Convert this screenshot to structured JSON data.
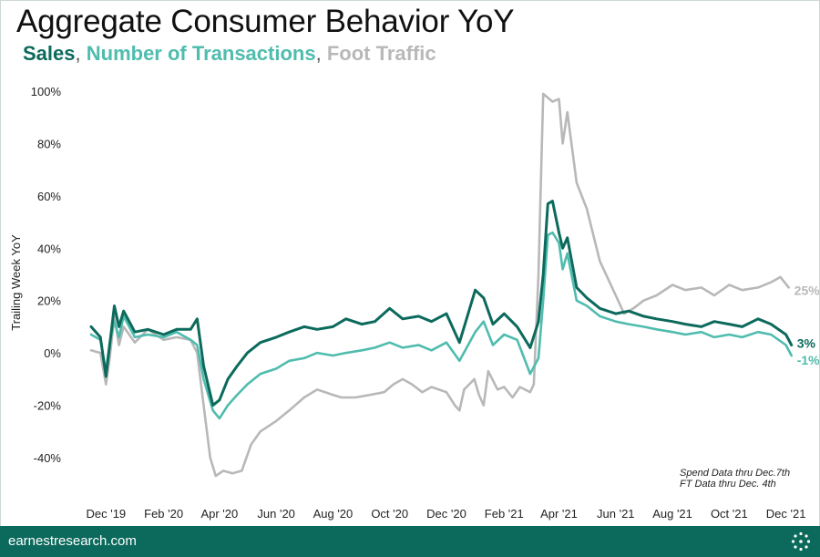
{
  "title": "Aggregate Consumer Behavior YoY",
  "subtitle": {
    "sales": "Sales",
    "sep1": ",",
    "transactions": "Number of Transactions",
    "sep2": ",",
    "foot_traffic": "Foot Traffic"
  },
  "notes": [
    "Spend Data thru Dec.7th",
    "FT Data thru Dec. 4th"
  ],
  "footer": {
    "url": "earnestresearch.com"
  },
  "colors": {
    "sales": "#0c6a5c",
    "transactions": "#4fbcae",
    "foot_traffic": "#b8b8b8",
    "footer_bg": "#0c6a5c"
  },
  "chart_data": {
    "type": "line",
    "ylabel": "Trailing Week YoY",
    "ylim": [
      -48,
      100
    ],
    "yticks": [
      -40,
      -20,
      0,
      20,
      40,
      60,
      80,
      100
    ],
    "ytick_labels": [
      "-40%",
      "-20%",
      "0%",
      "20%",
      "40%",
      "60%",
      "80%",
      "100%"
    ],
    "xlim": [
      "2019-11-15",
      "2021-12-20"
    ],
    "xticks": [
      "2019-12-01",
      "2020-02-01",
      "2020-04-01",
      "2020-06-01",
      "2020-08-01",
      "2020-10-01",
      "2020-12-01",
      "2021-02-01",
      "2021-04-01",
      "2021-06-01",
      "2021-08-01",
      "2021-10-01",
      "2021-12-01"
    ],
    "xtick_labels": [
      "Dec '19",
      "Feb '20",
      "Apr '20",
      "Jun '20",
      "Aug '20",
      "Oct '20",
      "Dec '20",
      "Feb '21",
      "Apr '21",
      "Jun '21",
      "Aug '21",
      "Oct '21",
      "Dec '21"
    ],
    "grid": false,
    "series": [
      {
        "name": "Foot Traffic",
        "color": "#b8b8b8",
        "end_label": "25%",
        "points": [
          [
            "2019-11-15",
            1
          ],
          [
            "2019-11-25",
            0
          ],
          [
            "2019-12-01",
            -12
          ],
          [
            "2019-12-05",
            -2
          ],
          [
            "2019-12-10",
            14
          ],
          [
            "2019-12-15",
            3
          ],
          [
            "2019-12-20",
            10
          ],
          [
            "2020-01-01",
            4
          ],
          [
            "2020-01-15",
            9
          ],
          [
            "2020-02-01",
            5
          ],
          [
            "2020-02-15",
            6
          ],
          [
            "2020-03-01",
            5
          ],
          [
            "2020-03-08",
            0
          ],
          [
            "2020-03-15",
            -20
          ],
          [
            "2020-03-22",
            -40
          ],
          [
            "2020-03-28",
            -47
          ],
          [
            "2020-04-05",
            -45
          ],
          [
            "2020-04-15",
            -46
          ],
          [
            "2020-04-25",
            -45
          ],
          [
            "2020-05-05",
            -35
          ],
          [
            "2020-05-15",
            -30
          ],
          [
            "2020-06-01",
            -26
          ],
          [
            "2020-06-15",
            -22
          ],
          [
            "2020-07-01",
            -17
          ],
          [
            "2020-07-15",
            -14
          ],
          [
            "2020-08-01",
            -16
          ],
          [
            "2020-08-10",
            -17
          ],
          [
            "2020-08-25",
            -17
          ],
          [
            "2020-09-10",
            -16
          ],
          [
            "2020-09-25",
            -15
          ],
          [
            "2020-10-05",
            -12
          ],
          [
            "2020-10-15",
            -10
          ],
          [
            "2020-10-25",
            -12
          ],
          [
            "2020-11-05",
            -15
          ],
          [
            "2020-11-15",
            -13
          ],
          [
            "2020-12-01",
            -15
          ],
          [
            "2020-12-10",
            -20
          ],
          [
            "2020-12-15",
            -22
          ],
          [
            "2020-12-20",
            -14
          ],
          [
            "2020-12-31",
            -10
          ],
          [
            "2021-01-05",
            -16
          ],
          [
            "2021-01-10",
            -20
          ],
          [
            "2021-01-15",
            -7
          ],
          [
            "2021-01-25",
            -14
          ],
          [
            "2021-02-01",
            -13
          ],
          [
            "2021-02-10",
            -17
          ],
          [
            "2021-02-18",
            -13
          ],
          [
            "2021-03-01",
            -15
          ],
          [
            "2021-03-05",
            -12
          ],
          [
            "2021-03-10",
            30
          ],
          [
            "2021-03-15",
            99
          ],
          [
            "2021-03-25",
            96
          ],
          [
            "2021-04-01",
            97
          ],
          [
            "2021-04-05",
            80
          ],
          [
            "2021-04-10",
            92
          ],
          [
            "2021-04-20",
            65
          ],
          [
            "2021-05-01",
            55
          ],
          [
            "2021-05-15",
            35
          ],
          [
            "2021-06-01",
            22
          ],
          [
            "2021-06-10",
            15
          ],
          [
            "2021-06-20",
            17
          ],
          [
            "2021-07-01",
            20
          ],
          [
            "2021-07-15",
            22
          ],
          [
            "2021-08-01",
            26
          ],
          [
            "2021-08-15",
            24
          ],
          [
            "2021-09-01",
            25
          ],
          [
            "2021-09-15",
            22
          ],
          [
            "2021-10-01",
            26
          ],
          [
            "2021-10-15",
            24
          ],
          [
            "2021-11-01",
            25
          ],
          [
            "2021-11-15",
            27
          ],
          [
            "2021-11-25",
            29
          ],
          [
            "2021-12-04",
            25
          ]
        ]
      },
      {
        "name": "Number of Transactions",
        "color": "#4fbcae",
        "end_label": "-1%",
        "points": [
          [
            "2019-11-15",
            7
          ],
          [
            "2019-11-25",
            5
          ],
          [
            "2019-12-01",
            -7
          ],
          [
            "2019-12-05",
            4
          ],
          [
            "2019-12-10",
            12
          ],
          [
            "2019-12-15",
            6
          ],
          [
            "2019-12-20",
            14
          ],
          [
            "2020-01-01",
            6
          ],
          [
            "2020-01-15",
            7
          ],
          [
            "2020-02-01",
            6
          ],
          [
            "2020-02-15",
            8
          ],
          [
            "2020-03-01",
            5
          ],
          [
            "2020-03-08",
            3
          ],
          [
            "2020-03-15",
            -10
          ],
          [
            "2020-03-25",
            -22
          ],
          [
            "2020-04-01",
            -25
          ],
          [
            "2020-04-10",
            -20
          ],
          [
            "2020-04-20",
            -16
          ],
          [
            "2020-05-01",
            -12
          ],
          [
            "2020-05-15",
            -8
          ],
          [
            "2020-06-01",
            -6
          ],
          [
            "2020-06-15",
            -3
          ],
          [
            "2020-07-01",
            -2
          ],
          [
            "2020-07-15",
            0
          ],
          [
            "2020-08-01",
            -1
          ],
          [
            "2020-08-15",
            0
          ],
          [
            "2020-09-01",
            1
          ],
          [
            "2020-09-15",
            2
          ],
          [
            "2020-10-01",
            4
          ],
          [
            "2020-10-15",
            2
          ],
          [
            "2020-11-01",
            3
          ],
          [
            "2020-11-15",
            1
          ],
          [
            "2020-12-01",
            4
          ],
          [
            "2020-12-15",
            -3
          ],
          [
            "2021-01-01",
            8
          ],
          [
            "2021-01-10",
            12
          ],
          [
            "2021-01-20",
            3
          ],
          [
            "2021-02-01",
            7
          ],
          [
            "2021-02-15",
            5
          ],
          [
            "2021-03-01",
            -8
          ],
          [
            "2021-03-10",
            -2
          ],
          [
            "2021-03-15",
            20
          ],
          [
            "2021-03-20",
            45
          ],
          [
            "2021-03-25",
            46
          ],
          [
            "2021-04-01",
            42
          ],
          [
            "2021-04-05",
            32
          ],
          [
            "2021-04-10",
            38
          ],
          [
            "2021-04-20",
            20
          ],
          [
            "2021-05-01",
            18
          ],
          [
            "2021-05-15",
            14
          ],
          [
            "2021-06-01",
            12
          ],
          [
            "2021-06-15",
            11
          ],
          [
            "2021-07-01",
            10
          ],
          [
            "2021-07-15",
            9
          ],
          [
            "2021-08-01",
            8
          ],
          [
            "2021-08-15",
            7
          ],
          [
            "2021-09-01",
            8
          ],
          [
            "2021-09-15",
            6
          ],
          [
            "2021-10-01",
            7
          ],
          [
            "2021-10-15",
            6
          ],
          [
            "2021-11-01",
            8
          ],
          [
            "2021-11-15",
            7
          ],
          [
            "2021-12-01",
            3
          ],
          [
            "2021-12-07",
            -1
          ]
        ]
      },
      {
        "name": "Sales",
        "color": "#0c6a5c",
        "end_label": "3%",
        "points": [
          [
            "2019-11-15",
            10
          ],
          [
            "2019-11-25",
            6
          ],
          [
            "2019-12-01",
            -9
          ],
          [
            "2019-12-05",
            3
          ],
          [
            "2019-12-10",
            18
          ],
          [
            "2019-12-15",
            10
          ],
          [
            "2019-12-20",
            16
          ],
          [
            "2020-01-01",
            8
          ],
          [
            "2020-01-15",
            9
          ],
          [
            "2020-02-01",
            7
          ],
          [
            "2020-02-15",
            9
          ],
          [
            "2020-03-01",
            9
          ],
          [
            "2020-03-08",
            13
          ],
          [
            "2020-03-15",
            -5
          ],
          [
            "2020-03-25",
            -20
          ],
          [
            "2020-04-01",
            -18
          ],
          [
            "2020-04-10",
            -10
          ],
          [
            "2020-04-20",
            -5
          ],
          [
            "2020-05-01",
            0
          ],
          [
            "2020-05-15",
            4
          ],
          [
            "2020-06-01",
            6
          ],
          [
            "2020-06-15",
            8
          ],
          [
            "2020-07-01",
            10
          ],
          [
            "2020-07-15",
            9
          ],
          [
            "2020-08-01",
            10
          ],
          [
            "2020-08-15",
            13
          ],
          [
            "2020-09-01",
            11
          ],
          [
            "2020-09-15",
            12
          ],
          [
            "2020-10-01",
            17
          ],
          [
            "2020-10-15",
            13
          ],
          [
            "2020-11-01",
            14
          ],
          [
            "2020-11-15",
            12
          ],
          [
            "2020-12-01",
            15
          ],
          [
            "2020-12-15",
            4
          ],
          [
            "2021-01-01",
            24
          ],
          [
            "2021-01-10",
            21
          ],
          [
            "2021-01-20",
            11
          ],
          [
            "2021-02-01",
            15
          ],
          [
            "2021-02-15",
            10
          ],
          [
            "2021-03-01",
            2
          ],
          [
            "2021-03-10",
            12
          ],
          [
            "2021-03-15",
            30
          ],
          [
            "2021-03-20",
            57
          ],
          [
            "2021-03-25",
            58
          ],
          [
            "2021-04-01",
            46
          ],
          [
            "2021-04-05",
            40
          ],
          [
            "2021-04-10",
            44
          ],
          [
            "2021-04-20",
            25
          ],
          [
            "2021-05-01",
            21
          ],
          [
            "2021-05-15",
            17
          ],
          [
            "2021-06-01",
            15
          ],
          [
            "2021-06-15",
            16
          ],
          [
            "2021-07-01",
            14
          ],
          [
            "2021-07-15",
            13
          ],
          [
            "2021-08-01",
            12
          ],
          [
            "2021-08-15",
            11
          ],
          [
            "2021-09-01",
            10
          ],
          [
            "2021-09-15",
            12
          ],
          [
            "2021-10-01",
            11
          ],
          [
            "2021-10-15",
            10
          ],
          [
            "2021-11-01",
            13
          ],
          [
            "2021-11-15",
            11
          ],
          [
            "2021-12-01",
            7
          ],
          [
            "2021-12-07",
            3
          ]
        ]
      }
    ]
  }
}
